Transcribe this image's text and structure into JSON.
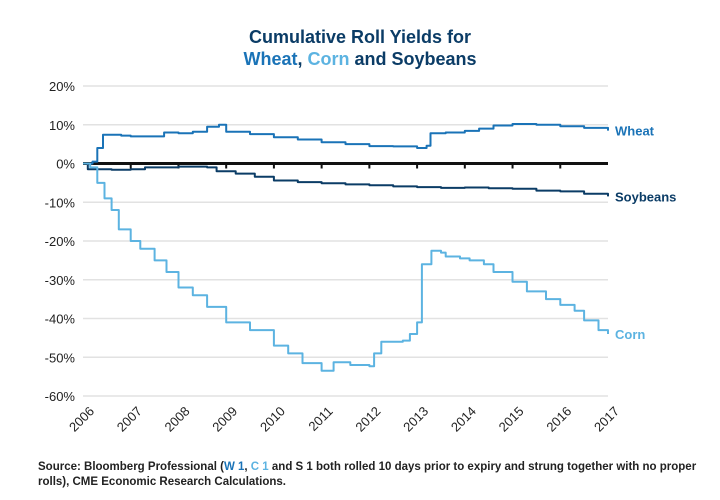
{
  "title": {
    "line1": "Cumulative Roll Yields for",
    "wheat": "Wheat",
    "comma": ", ",
    "corn": "Corn",
    "rest": " and Soybeans"
  },
  "source": {
    "prefix": "Source: Bloomberg Professional (",
    "w": "W 1",
    "sep": ", ",
    "c": "C 1",
    "suffix": " and S 1 both rolled 10 days prior to expiry and strung together with no proper rolls), CME Economic Research Calculations."
  },
  "colors": {
    "wheat": "#1a73b7",
    "corn": "#5cb3e1",
    "soybeans": "#0b3c66",
    "zero_line": "#111111",
    "grid": "#e2e2e2"
  },
  "chart_data": {
    "type": "line",
    "title": "Cumulative Roll Yields for Wheat, Corn and Soybeans",
    "xlabel": "",
    "ylabel": "",
    "xlim": [
      2006,
      2017
    ],
    "ylim": [
      -60,
      20
    ],
    "grid": true,
    "legend": "right-end line labels",
    "x_ticks": [
      "2006",
      "2007",
      "2008",
      "2009",
      "2010",
      "2011",
      "2012",
      "2013",
      "2014",
      "2015",
      "2016",
      "2017"
    ],
    "y_ticks": [
      {
        "value": 20,
        "label": "20%"
      },
      {
        "value": 10,
        "label": "10%"
      },
      {
        "value": 0,
        "label": "0%"
      },
      {
        "value": -10,
        "label": "-10%"
      },
      {
        "value": -20,
        "label": "-20%"
      },
      {
        "value": -30,
        "label": "-30%"
      },
      {
        "value": -40,
        "label": "-40%"
      },
      {
        "value": -50,
        "label": "-50%"
      },
      {
        "value": -60,
        "label": "-60%"
      }
    ],
    "series": [
      {
        "name": "Wheat",
        "color": "#1a73b7",
        "points": [
          [
            2006.0,
            0
          ],
          [
            2006.2,
            0.5
          ],
          [
            2006.3,
            4
          ],
          [
            2006.38,
            4
          ],
          [
            2006.42,
            7.4
          ],
          [
            2006.8,
            7.2
          ],
          [
            2007.0,
            7
          ],
          [
            2007.5,
            7
          ],
          [
            2007.7,
            8
          ],
          [
            2008.0,
            7.8
          ],
          [
            2008.3,
            8.2
          ],
          [
            2008.6,
            9.5
          ],
          [
            2008.85,
            10
          ],
          [
            2009.0,
            8.2
          ],
          [
            2009.5,
            7.6
          ],
          [
            2010.0,
            6.8
          ],
          [
            2010.5,
            6.2
          ],
          [
            2011.0,
            5.5
          ],
          [
            2011.5,
            5
          ],
          [
            2012.0,
            4.5
          ],
          [
            2012.5,
            4.4
          ],
          [
            2013.0,
            4
          ],
          [
            2013.2,
            4.6
          ],
          [
            2013.28,
            7.8
          ],
          [
            2013.6,
            8
          ],
          [
            2014.0,
            8.4
          ],
          [
            2014.3,
            9
          ],
          [
            2014.6,
            9.8
          ],
          [
            2015.0,
            10.2
          ],
          [
            2015.5,
            10
          ],
          [
            2016.0,
            9.6
          ],
          [
            2016.5,
            9.2
          ],
          [
            2017.0,
            8.5
          ]
        ]
      },
      {
        "name": "Soybeans",
        "color": "#0b3c66",
        "points": [
          [
            2006.0,
            0
          ],
          [
            2006.1,
            -1.5
          ],
          [
            2006.6,
            -1.6
          ],
          [
            2007.0,
            -1.5
          ],
          [
            2007.3,
            -1
          ],
          [
            2008.0,
            -0.8
          ],
          [
            2008.6,
            -1
          ],
          [
            2008.8,
            -2
          ],
          [
            2009.2,
            -2.6
          ],
          [
            2009.6,
            -3.4
          ],
          [
            2010.0,
            -4.4
          ],
          [
            2010.5,
            -4.8
          ],
          [
            2011.0,
            -5.1
          ],
          [
            2011.5,
            -5.4
          ],
          [
            2012.0,
            -5.6
          ],
          [
            2012.5,
            -5.9
          ],
          [
            2013.0,
            -6.1
          ],
          [
            2013.5,
            -6.3
          ],
          [
            2014.0,
            -6.2
          ],
          [
            2014.5,
            -6.4
          ],
          [
            2015.0,
            -6.5
          ],
          [
            2015.5,
            -7
          ],
          [
            2016.0,
            -7.2
          ],
          [
            2016.5,
            -7.8
          ],
          [
            2017.0,
            -8.5
          ]
        ]
      },
      {
        "name": "Corn",
        "color": "#5cb3e1",
        "points": [
          [
            2006.0,
            0
          ],
          [
            2006.15,
            -1
          ],
          [
            2006.3,
            -5
          ],
          [
            2006.45,
            -9
          ],
          [
            2006.6,
            -12
          ],
          [
            2006.75,
            -17
          ],
          [
            2007.0,
            -20
          ],
          [
            2007.2,
            -22
          ],
          [
            2007.5,
            -25
          ],
          [
            2007.75,
            -28
          ],
          [
            2008.0,
            -32
          ],
          [
            2008.3,
            -34
          ],
          [
            2008.6,
            -37
          ],
          [
            2009.0,
            -41
          ],
          [
            2009.5,
            -43
          ],
          [
            2010.0,
            -47
          ],
          [
            2010.3,
            -49
          ],
          [
            2010.6,
            -51.5
          ],
          [
            2011.0,
            -53.5
          ],
          [
            2011.25,
            -51.3
          ],
          [
            2011.6,
            -52
          ],
          [
            2012.0,
            -52.3
          ],
          [
            2012.1,
            -49
          ],
          [
            2012.25,
            -46
          ],
          [
            2012.7,
            -45.7
          ],
          [
            2012.85,
            -44
          ],
          [
            2013.0,
            -41
          ],
          [
            2013.1,
            -26
          ],
          [
            2013.3,
            -22.5
          ],
          [
            2013.5,
            -23
          ],
          [
            2013.6,
            -24
          ],
          [
            2013.9,
            -24.5
          ],
          [
            2014.1,
            -25
          ],
          [
            2014.4,
            -26
          ],
          [
            2014.6,
            -28
          ],
          [
            2015.0,
            -30.5
          ],
          [
            2015.3,
            -33
          ],
          [
            2015.7,
            -35
          ],
          [
            2016.0,
            -36.5
          ],
          [
            2016.3,
            -38
          ],
          [
            2016.5,
            -40.5
          ],
          [
            2016.8,
            -43
          ],
          [
            2017.0,
            -44
          ]
        ]
      }
    ]
  }
}
